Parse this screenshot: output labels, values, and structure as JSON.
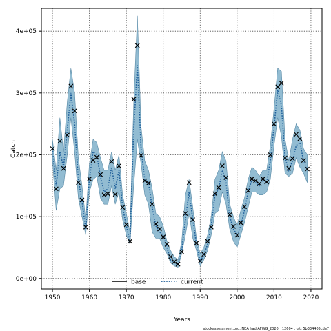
{
  "chart_data": {
    "type": "line",
    "title": "",
    "xlabel": "Years",
    "ylabel": "Catch",
    "xlim": [
      1947,
      2023
    ],
    "ylim": [
      -17000,
      437000
    ],
    "x_ticks": [
      1950,
      1960,
      1970,
      1980,
      1990,
      2000,
      2010,
      2020
    ],
    "y_ticks": [
      0,
      100000,
      200000,
      300000,
      400000
    ],
    "y_tick_labels": [
      "0e+00",
      "1e+05",
      "2e+05",
      "3e+05",
      "4e+05"
    ],
    "grid": true,
    "legend_position": "bottom-center",
    "colors": {
      "band": "#92bcd2",
      "band_edge": "#5a8aa6",
      "current": "#1f5f9a",
      "base": "#000000",
      "marker": "#000000"
    },
    "series": [
      {
        "name": "base",
        "style": "solid",
        "x": [],
        "y": []
      },
      {
        "name": "current",
        "style": "dotted",
        "x": [
          1950,
          1951,
          1952,
          1953,
          1954,
          1955,
          1956,
          1957,
          1958,
          1959,
          1960,
          1961,
          1962,
          1963,
          1964,
          1965,
          1966,
          1967,
          1968,
          1969,
          1970,
          1971,
          1972,
          1973,
          1974,
          1975,
          1976,
          1977,
          1978,
          1979,
          1980,
          1981,
          1982,
          1983,
          1984,
          1985,
          1986,
          1987,
          1988,
          1989,
          1990,
          1991,
          1992,
          1993,
          1994,
          1995,
          1996,
          1997,
          1998,
          1999,
          2000,
          2001,
          2002,
          2003,
          2004,
          2005,
          2006,
          2007,
          2008,
          2009,
          2010,
          2011,
          2012,
          2013,
          2014,
          2015,
          2016,
          2017,
          2018,
          2019
        ],
        "y": [
          210000,
          150000,
          205000,
          180000,
          240000,
          300000,
          250000,
          160000,
          125000,
          80000,
          160000,
          205000,
          200000,
          165000,
          140000,
          145000,
          180000,
          145000,
          175000,
          115000,
          85000,
          60000,
          240000,
          345000,
          210000,
          160000,
          155000,
          115000,
          85000,
          75000,
          70000,
          50000,
          30000,
          25000,
          22000,
          45000,
          95000,
          140000,
          95000,
          55000,
          28000,
          38000,
          55000,
          85000,
          135000,
          145000,
          175000,
          155000,
          100000,
          80000,
          70000,
          85000,
          110000,
          140000,
          160000,
          155000,
          150000,
          160000,
          155000,
          190000,
          245000,
          305000,
          280000,
          195000,
          175000,
          190000,
          215000,
          220000,
          190000,
          175000
        ],
        "lower": [
          190000,
          110000,
          145000,
          150000,
          200000,
          260000,
          205000,
          130000,
          100000,
          70000,
          140000,
          160000,
          165000,
          130000,
          120000,
          120000,
          150000,
          120000,
          140000,
          95000,
          70000,
          55000,
          150000,
          225000,
          185000,
          135000,
          120000,
          75000,
          65000,
          65000,
          50000,
          40000,
          25000,
          20000,
          18000,
          40000,
          70000,
          105000,
          65000,
          45000,
          20000,
          30000,
          45000,
          70000,
          105000,
          110000,
          140000,
          120000,
          80000,
          60000,
          50000,
          70000,
          90000,
          115000,
          140000,
          140000,
          135000,
          135000,
          140000,
          160000,
          215000,
          260000,
          230000,
          170000,
          165000,
          170000,
          195000,
          180000,
          170000,
          155000
        ],
        "upper": [
          225000,
          175000,
          260000,
          205000,
          285000,
          340000,
          300000,
          195000,
          150000,
          95000,
          185000,
          225000,
          220000,
          195000,
          175000,
          175000,
          205000,
          175000,
          200000,
          135000,
          105000,
          75000,
          285000,
          425000,
          245000,
          190000,
          175000,
          145000,
          105000,
          100000,
          85000,
          60000,
          45000,
          35000,
          30000,
          60000,
          135000,
          160000,
          115000,
          65000,
          40000,
          50000,
          70000,
          100000,
          160000,
          175000,
          205000,
          190000,
          120000,
          100000,
          85000,
          110000,
          130000,
          160000,
          180000,
          175000,
          165000,
          175000,
          175000,
          215000,
          275000,
          340000,
          335000,
          225000,
          190000,
          225000,
          250000,
          240000,
          210000,
          200000
        ],
        "markers": [
          210000,
          145000,
          222000,
          178000,
          232000,
          311000,
          271000,
          155000,
          127000,
          83000,
          161000,
          191000,
          196000,
          168000,
          135000,
          137000,
          189000,
          136000,
          182000,
          115000,
          87000,
          60000,
          290000,
          377000,
          199000,
          158000,
          154000,
          120000,
          88000,
          80000,
          67000,
          55000,
          35000,
          27000,
          23000,
          43000,
          105000,
          155000,
          95000,
          57000,
          28000,
          39000,
          60000,
          83000,
          137000,
          147000,
          182000,
          163000,
          103000,
          84000,
          70000,
          90000,
          116000,
          142000,
          161000,
          158000,
          153000,
          161000,
          156000,
          200000,
          250000,
          310000,
          316000,
          195000,
          178000,
          194000,
          233000,
          226000,
          191000,
          177000
        ]
      }
    ]
  },
  "legend": {
    "items": [
      "base",
      "current"
    ]
  },
  "footer": "stockassessment.org, NEA had AFWG_2020, r12604 , git: 5b334405cda7"
}
